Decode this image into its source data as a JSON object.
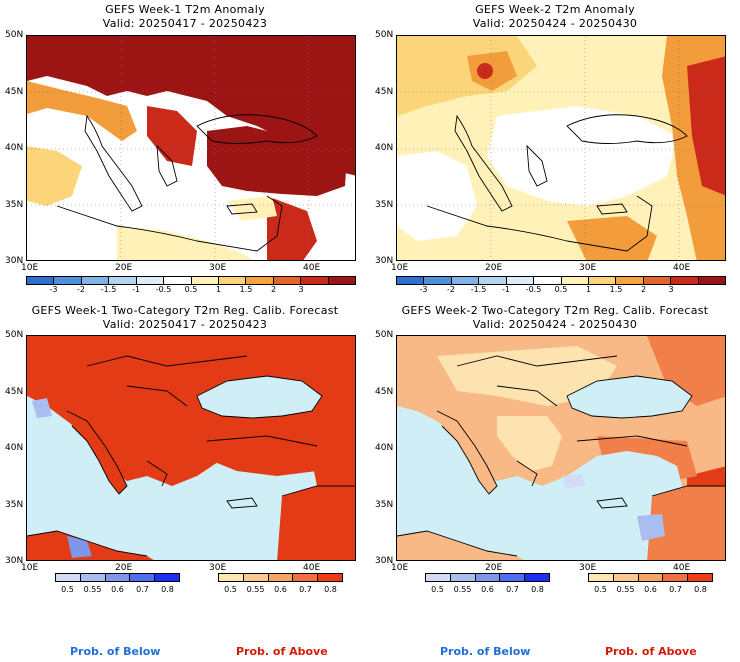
{
  "panels": [
    {
      "title": "GEFS Week-1 T2m Anomaly",
      "valid": "Valid: 20250417 - 20250423"
    },
    {
      "title": "GEFS Week-2 T2m Anomaly",
      "valid": "Valid: 20250424 - 20250430"
    },
    {
      "title": "GEFS Week-1 Two-Category T2m Reg. Calib. Forecast",
      "valid": "Valid: 20250417 - 20250423"
    },
    {
      "title": "GEFS Week-2 Two-Category T2m Reg. Calib. Forecast",
      "valid": "Valid: 20250424 - 20250430"
    }
  ],
  "axes": {
    "lat_labels": [
      "50N",
      "45N",
      "40N",
      "35N",
      "30N"
    ],
    "lon_labels": [
      "10E",
      "20E",
      "30E",
      "40E"
    ]
  },
  "anomaly_colorbar": {
    "labels": [
      "-3",
      "-2",
      "-1.5",
      "-1",
      "-0.5",
      "0.5",
      "1",
      "1.5",
      "2",
      "3"
    ],
    "colors": [
      "#2f6fcf",
      "#4f8ed8",
      "#7fb2e6",
      "#b3d5f2",
      "#dcecf9",
      "#ffffff",
      "#fff1b8",
      "#fcd57a",
      "#f6a43d",
      "#e4642a",
      "#c92a1a",
      "#9c1414"
    ]
  },
  "below_colorbar": {
    "labels": [
      "0.5",
      "0.55",
      "0.6",
      "0.7",
      "0.8"
    ],
    "colors": [
      "#d2dcf6",
      "#a9bdf0",
      "#7d98ea",
      "#4f6ef0",
      "#1f2ff2"
    ]
  },
  "above_colorbar": {
    "labels": [
      "0.5",
      "0.55",
      "0.6",
      "0.7",
      "0.8"
    ],
    "colors": [
      "#fde7b3",
      "#fbc98c",
      "#f7a265",
      "#f26f3f",
      "#ee3b16"
    ]
  },
  "legend": {
    "below": "Prob. of Below",
    "above": "Prob. of Above"
  },
  "fields": {
    "sea_prob": "#cfeef5",
    "land_above_strong": "#e33b16",
    "land_above_mid": "#f07f4a",
    "land_above_light": "#f8b987",
    "land_above_pale": "#fde3b0",
    "anom_dark": "#9c1414",
    "anom_red": "#c92a1a",
    "anom_orange": "#f29c3c",
    "anom_yellow": "#fcd57a",
    "anom_pale": "#fff1b8"
  }
}
